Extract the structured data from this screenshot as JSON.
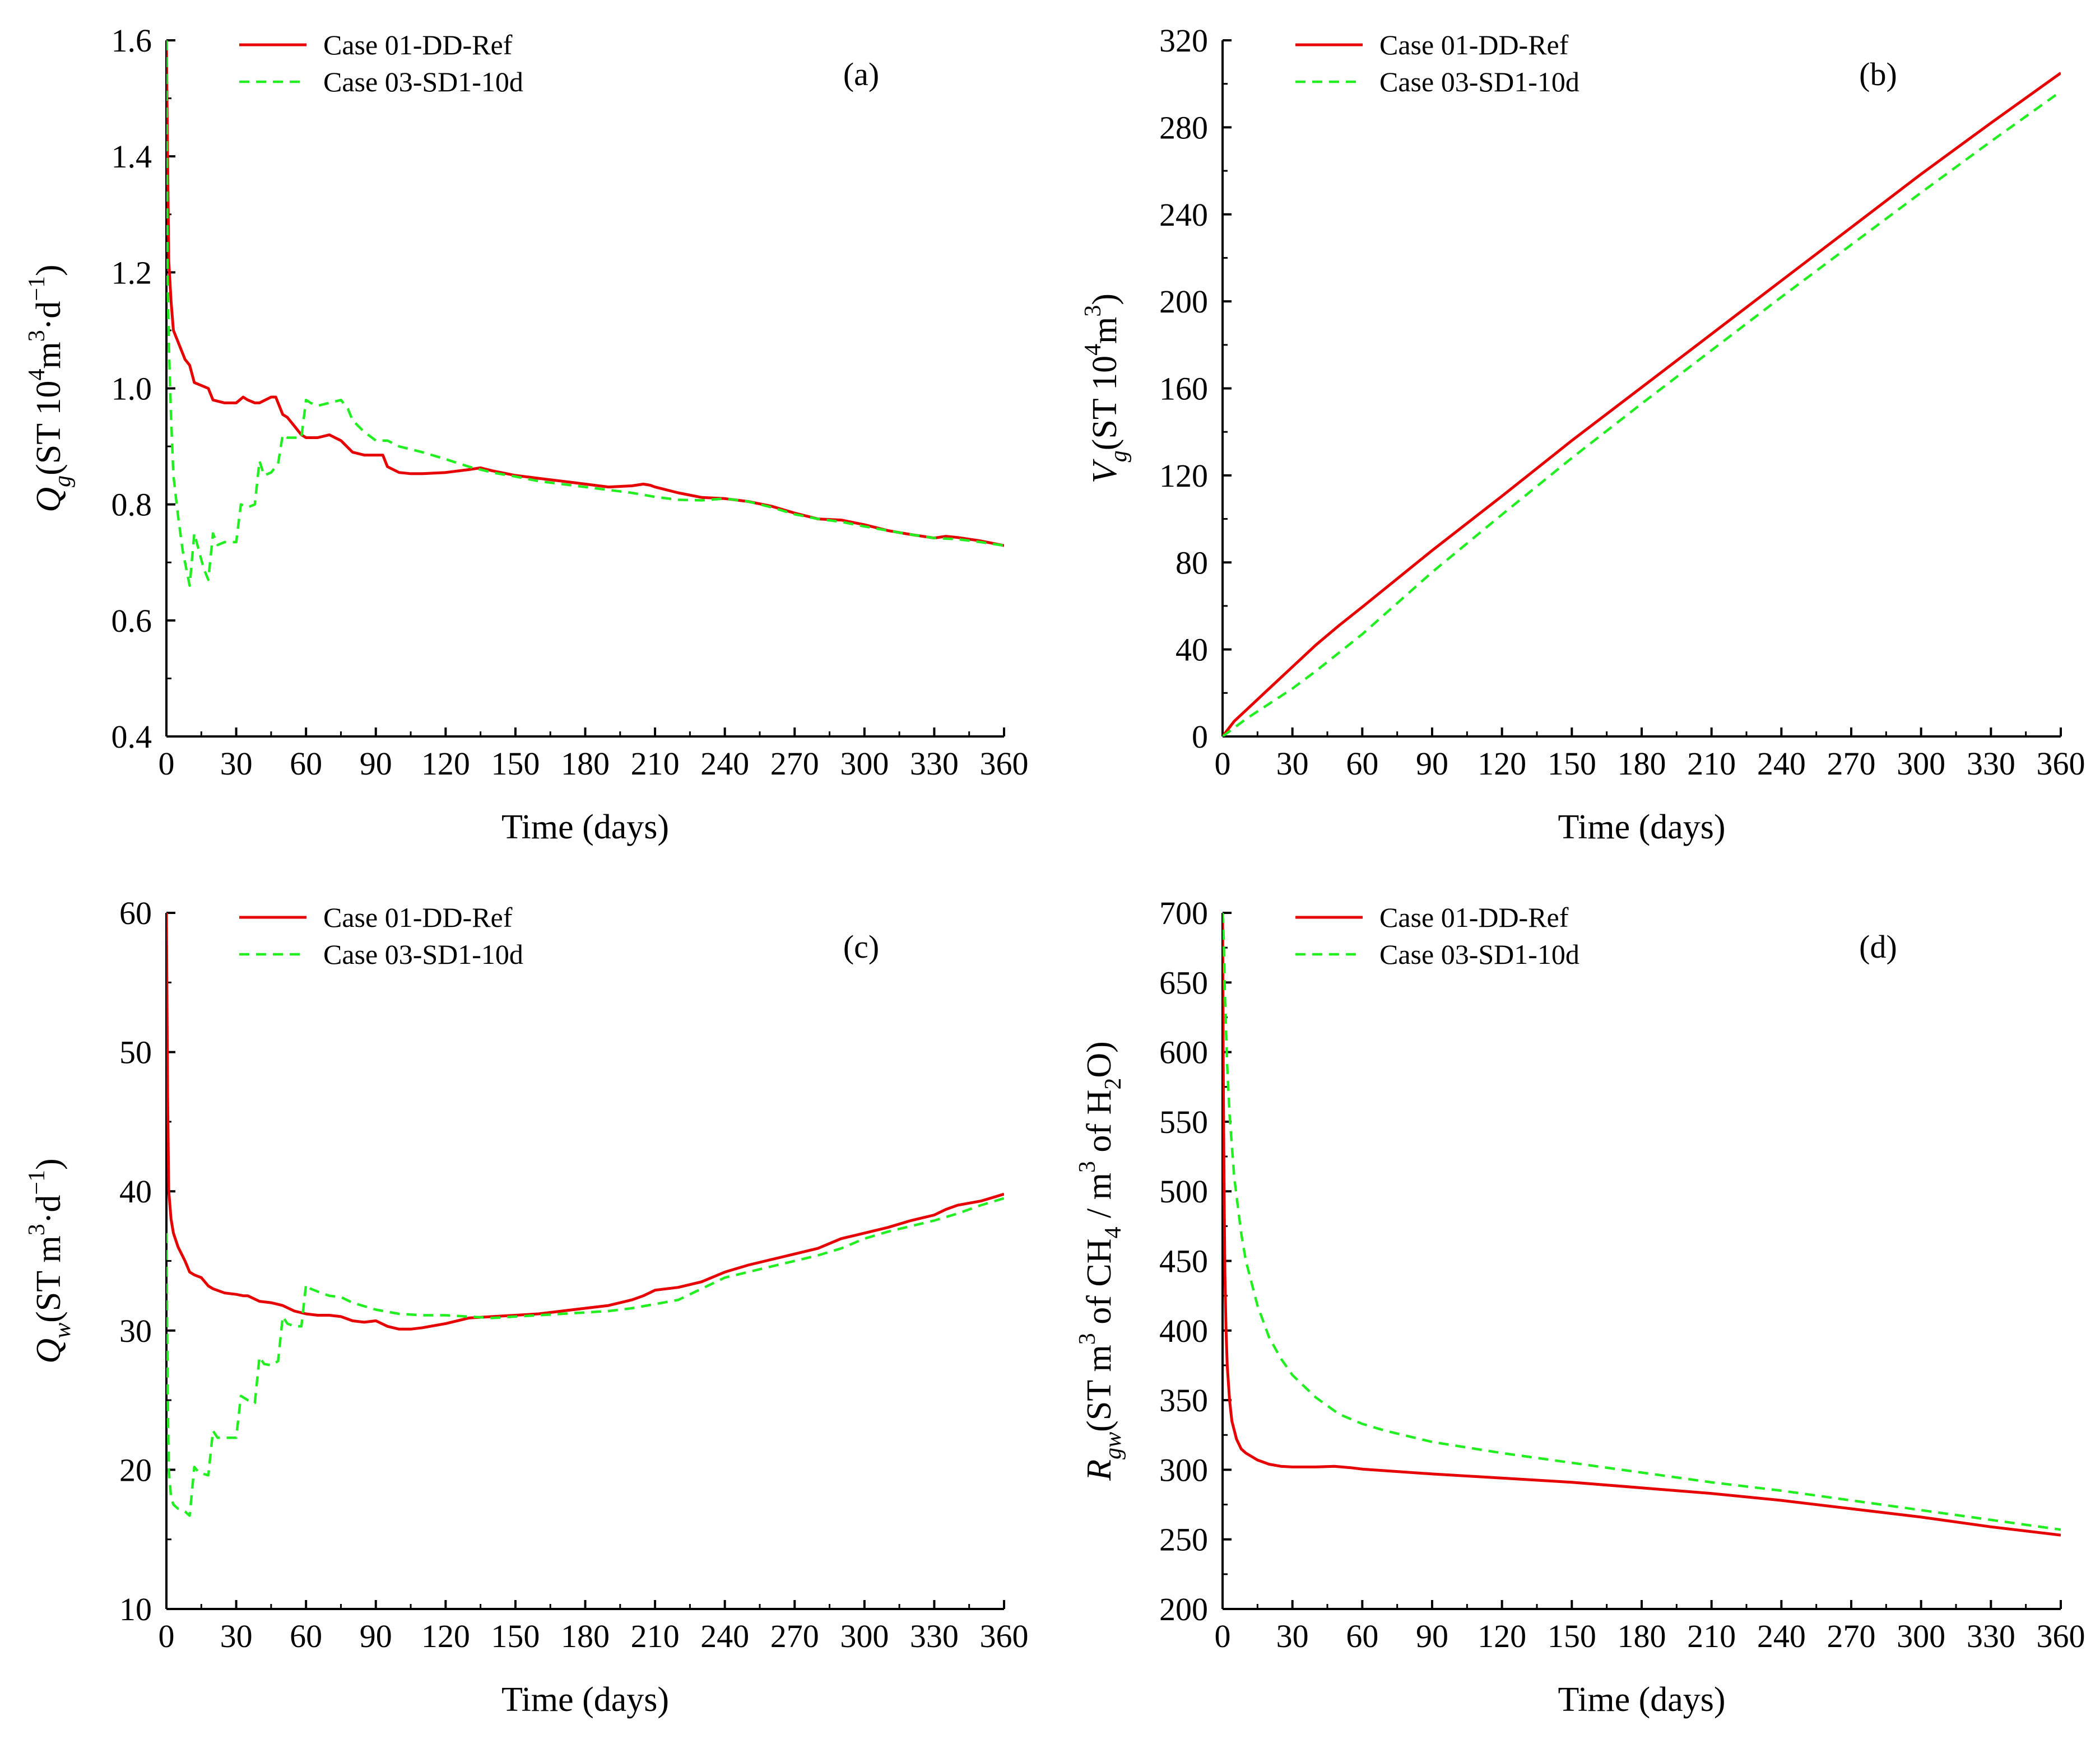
{
  "chart_data": [
    {
      "panel": "a",
      "type": "line",
      "tag": "(a)",
      "xlabel": "Time (days)",
      "ylabel": {
        "main": "Q",
        "sub": "g",
        "rest": "(ST 10",
        "sup1": "4",
        "mid": "m",
        "sup2": "3",
        "tail": "·d",
        "sup3": "−1",
        "end": ")"
      },
      "xlim": [
        0,
        360
      ],
      "ylim": [
        0.4,
        1.6
      ],
      "xticks": [
        "0",
        "30",
        "60",
        "90",
        "120",
        "150",
        "180",
        "210",
        "240",
        "270",
        "300",
        "330",
        "360"
      ],
      "yticks": [
        "0.4",
        "0.6",
        "0.8",
        "1.0",
        "1.2",
        "1.4",
        "1.6"
      ],
      "legend_position": "top-left",
      "series": [
        {
          "name": "Case 01-DD-Ref",
          "color": "#e60000",
          "dash": "solid",
          "x": [
            0,
            0.5,
            1,
            2,
            3,
            5,
            8,
            10,
            12,
            15,
            18,
            20,
            25,
            30,
            33,
            35,
            38,
            40,
            45,
            47,
            50,
            52,
            55,
            58,
            60,
            65,
            70,
            75,
            80,
            85,
            90,
            93,
            95,
            100,
            105,
            110,
            120,
            130,
            135,
            140,
            150,
            160,
            170,
            180,
            190,
            200,
            205,
            208,
            210,
            220,
            230,
            240,
            250,
            260,
            270,
            280,
            290,
            300,
            310,
            320,
            330,
            335,
            340,
            350,
            360
          ],
          "y": [
            1.6,
            1.4,
            1.22,
            1.15,
            1.1,
            1.08,
            1.05,
            1.04,
            1.01,
            1.005,
            1.0,
            0.98,
            0.975,
            0.975,
            0.985,
            0.98,
            0.975,
            0.975,
            0.985,
            0.985,
            0.955,
            0.95,
            0.935,
            0.92,
            0.915,
            0.915,
            0.92,
            0.91,
            0.89,
            0.885,
            0.885,
            0.885,
            0.865,
            0.855,
            0.853,
            0.853,
            0.855,
            0.86,
            0.863,
            0.858,
            0.85,
            0.845,
            0.84,
            0.835,
            0.83,
            0.832,
            0.835,
            0.833,
            0.83,
            0.82,
            0.812,
            0.81,
            0.805,
            0.797,
            0.785,
            0.775,
            0.773,
            0.765,
            0.755,
            0.748,
            0.742,
            0.745,
            0.743,
            0.737,
            0.729
          ]
        },
        {
          "name": "Case 03-SD1-10d",
          "color": "#22ee22",
          "dash": "dashed",
          "x": [
            0,
            0.5,
            1,
            2,
            3,
            5,
            7,
            10,
            12,
            14,
            16,
            18,
            20,
            22,
            25,
            30,
            32,
            35,
            38,
            40,
            42,
            45,
            48,
            50,
            52,
            55,
            58,
            60,
            62,
            65,
            70,
            75,
            78,
            80,
            85,
            90,
            95,
            100,
            110,
            120,
            130,
            140,
            150,
            160,
            170,
            180,
            190,
            200,
            210,
            220,
            230,
            240,
            250,
            260,
            270,
            280,
            290,
            300,
            310,
            320,
            330,
            340,
            350,
            360
          ],
          "y": [
            1.6,
            1.2,
            1.08,
            0.95,
            0.85,
            0.78,
            0.72,
            0.66,
            0.75,
            0.72,
            0.69,
            0.67,
            0.75,
            0.73,
            0.735,
            0.735,
            0.8,
            0.795,
            0.8,
            0.875,
            0.85,
            0.855,
            0.87,
            0.92,
            0.915,
            0.915,
            0.915,
            0.98,
            0.975,
            0.97,
            0.975,
            0.98,
            0.965,
            0.945,
            0.925,
            0.91,
            0.91,
            0.9,
            0.89,
            0.878,
            0.865,
            0.855,
            0.848,
            0.84,
            0.835,
            0.83,
            0.825,
            0.82,
            0.813,
            0.808,
            0.807,
            0.81,
            0.805,
            0.795,
            0.783,
            0.775,
            0.77,
            0.762,
            0.755,
            0.748,
            0.742,
            0.74,
            0.735,
            0.729
          ]
        }
      ]
    },
    {
      "panel": "b",
      "type": "line",
      "tag": "(b)",
      "xlabel": "Time (days)",
      "ylabel": {
        "main": "V",
        "sub": "g",
        "rest": "(ST 10",
        "sup1": "4",
        "mid": "m",
        "sup2": "3",
        "end": ")"
      },
      "xlim": [
        0,
        360
      ],
      "ylim": [
        0,
        320
      ],
      "xticks": [
        "0",
        "30",
        "60",
        "90",
        "120",
        "150",
        "180",
        "210",
        "240",
        "270",
        "300",
        "330",
        "360"
      ],
      "yticks": [
        "0",
        "40",
        "80",
        "120",
        "160",
        "200",
        "240",
        "280",
        "320"
      ],
      "legend_position": "top-left",
      "series": [
        {
          "name": "Case 01-DD-Ref",
          "color": "#e60000",
          "dash": "solid",
          "x": [
            0,
            5,
            10,
            20,
            30,
            40,
            50,
            60,
            90,
            120,
            150,
            180,
            210,
            240,
            270,
            300,
            330,
            360
          ],
          "y": [
            0,
            7,
            12,
            22,
            32,
            42,
            51,
            59.5,
            85.5,
            110.5,
            136,
            160.5,
            185,
            209.5,
            234,
            258.5,
            282,
            305
          ]
        },
        {
          "name": "Case 03-SD1-10d",
          "color": "#22ee22",
          "dash": "dashed",
          "x": [
            0,
            5,
            10,
            20,
            30,
            40,
            50,
            60,
            90,
            120,
            150,
            180,
            210,
            240,
            270,
            300,
            330,
            360
          ],
          "y": [
            0,
            4,
            8,
            15,
            22,
            30,
            38.5,
            47,
            75.5,
            102,
            128,
            153,
            177.5,
            202,
            226,
            250,
            273.5,
            296.5
          ]
        }
      ]
    },
    {
      "panel": "c",
      "type": "line",
      "tag": "(c)",
      "xlabel": "Time (days)",
      "ylabel": {
        "main": "Q",
        "sub": "w",
        "rest": "(ST m",
        "sup1": "3",
        "tail": "·d",
        "sup3": "−1",
        "end": ")"
      },
      "xlim": [
        0,
        360
      ],
      "ylim": [
        10,
        60
      ],
      "xticks": [
        "0",
        "30",
        "60",
        "90",
        "120",
        "150",
        "180",
        "210",
        "240",
        "270",
        "300",
        "330",
        "360"
      ],
      "yticks": [
        "10",
        "20",
        "30",
        "40",
        "50",
        "60"
      ],
      "legend_position": "top-left",
      "series": [
        {
          "name": "Case 01-DD-Ref",
          "color": "#e60000",
          "dash": "solid",
          "x": [
            0,
            0.5,
            1,
            2,
            3,
            5,
            8,
            10,
            12,
            15,
            18,
            20,
            25,
            30,
            33,
            35,
            40,
            45,
            50,
            55,
            60,
            65,
            70,
            75,
            80,
            85,
            90,
            95,
            100,
            105,
            110,
            120,
            130,
            140,
            150,
            160,
            170,
            180,
            190,
            200,
            205,
            210,
            220,
            230,
            240,
            250,
            260,
            270,
            280,
            290,
            300,
            310,
            320,
            330,
            335,
            340,
            350,
            360
          ],
          "y": [
            60,
            47,
            40,
            38,
            37,
            36,
            35,
            34.2,
            34,
            33.8,
            33.2,
            33,
            32.7,
            32.6,
            32.5,
            32.5,
            32.1,
            32,
            31.8,
            31.4,
            31.2,
            31.1,
            31.1,
            31,
            30.7,
            30.6,
            30.7,
            30.3,
            30.1,
            30.1,
            30.2,
            30.5,
            30.9,
            31,
            31.1,
            31.2,
            31.4,
            31.6,
            31.8,
            32.2,
            32.5,
            32.9,
            33.1,
            33.5,
            34.2,
            34.7,
            35.1,
            35.5,
            35.9,
            36.6,
            37,
            37.4,
            37.9,
            38.3,
            38.7,
            39,
            39.3,
            39.8
          ]
        },
        {
          "name": "Case 03-SD1-10d",
          "color": "#22ee22",
          "dash": "dashed",
          "x": [
            0,
            0.5,
            1,
            2,
            3,
            5,
            8,
            10,
            12,
            14,
            16,
            18,
            20,
            22,
            25,
            30,
            32,
            35,
            38,
            40,
            42,
            45,
            48,
            50,
            52,
            55,
            58,
            60,
            62,
            65,
            70,
            75,
            80,
            90,
            100,
            110,
            120,
            130,
            140,
            150,
            160,
            170,
            180,
            190,
            200,
            210,
            220,
            230,
            240,
            250,
            260,
            270,
            280,
            290,
            300,
            310,
            320,
            330,
            340,
            350,
            360
          ],
          "y": [
            37,
            26,
            20,
            18,
            17.5,
            17.2,
            17,
            16.7,
            20.2,
            19.8,
            19.7,
            19.6,
            22.8,
            22.3,
            22.3,
            22.3,
            25.3,
            25,
            24.8,
            28.1,
            27.6,
            27.5,
            27.8,
            31,
            30.5,
            30.3,
            30.3,
            33.3,
            33,
            32.8,
            32.5,
            32.4,
            32,
            31.5,
            31.2,
            31.1,
            31.1,
            31,
            30.9,
            31,
            31.1,
            31.2,
            31.3,
            31.4,
            31.6,
            31.9,
            32.2,
            33,
            33.8,
            34.2,
            34.6,
            35,
            35.4,
            35.9,
            36.6,
            37.1,
            37.5,
            37.9,
            38.4,
            39,
            39.5
          ]
        }
      ]
    },
    {
      "panel": "d",
      "type": "line",
      "tag": "(d)",
      "xlabel": "Time (days)",
      "ylabel": {
        "main": "R",
        "sub": "gw",
        "rest": "(ST m",
        "sup1": "3",
        "mid": " of CH",
        "sub2": "4",
        "mid2": " / m",
        "sup2": "3",
        "mid3": " of H",
        "sub3": "2",
        "end": "O)"
      },
      "xlim": [
        0,
        360
      ],
      "ylim": [
        200,
        700
      ],
      "xticks": [
        "0",
        "30",
        "60",
        "90",
        "120",
        "150",
        "180",
        "210",
        "240",
        "270",
        "300",
        "330",
        "360"
      ],
      "yticks": [
        "200",
        "250",
        "300",
        "350",
        "400",
        "450",
        "500",
        "550",
        "600",
        "650",
        "700"
      ],
      "legend_position": "top-left",
      "series": [
        {
          "name": "Case 01-DD-Ref",
          "color": "#e60000",
          "dash": "solid",
          "x": [
            0,
            0.3,
            0.6,
            1,
            1.5,
            2,
            3,
            4,
            6,
            8,
            10,
            15,
            20,
            25,
            30,
            40,
            48,
            55,
            60,
            90,
            120,
            150,
            180,
            210,
            240,
            270,
            300,
            330,
            360
          ],
          "y": [
            700,
            590,
            510,
            440,
            400,
            375,
            350,
            335,
            322,
            315,
            312,
            307,
            304,
            302.5,
            302,
            302,
            302.5,
            301.5,
            300.5,
            297,
            294,
            291,
            287,
            283,
            278,
            272,
            266,
            259,
            253
          ]
        },
        {
          "name": "Case 03-SD1-10d",
          "color": "#22ee22",
          "dash": "dashed",
          "x": [
            0,
            0.5,
            1,
            2,
            3,
            5,
            8,
            10,
            15,
            20,
            25,
            30,
            40,
            50,
            60,
            70,
            80,
            90,
            120,
            150,
            180,
            210,
            240,
            270,
            300,
            330,
            360
          ],
          "y": [
            700,
            680,
            640,
            590,
            555,
            510,
            470,
            450,
            418,
            395,
            380,
            368,
            352,
            340,
            333,
            328,
            324,
            320,
            312,
            305,
            298,
            291,
            285,
            278,
            271,
            264,
            257
          ]
        }
      ]
    }
  ]
}
